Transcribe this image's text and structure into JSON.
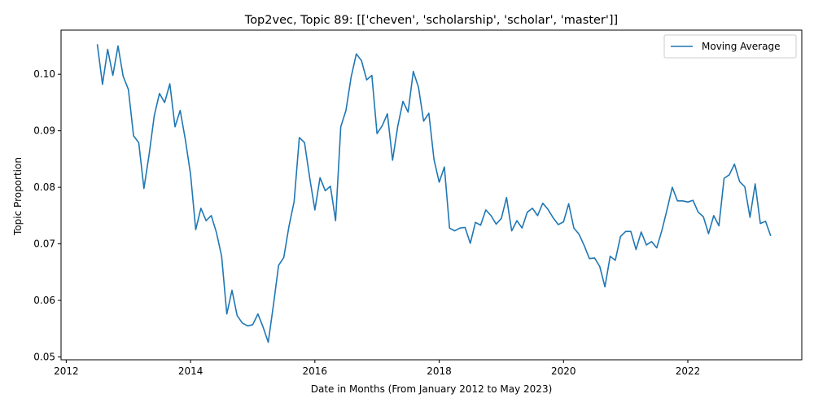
{
  "chart_data": {
    "type": "line",
    "title": "Top2vec, Topic 89: [['cheven', 'scholarship', 'scholar', 'master']]",
    "xlabel": "Date in Months (From January 2012 to May 2023)",
    "ylabel": "Topic Proportion",
    "xlim": [
      "2011-12-01",
      "2023-11-01"
    ],
    "ylim": [
      0.0495,
      0.1078
    ],
    "xticks": [
      "2012-01-01",
      "2014-01-01",
      "2016-01-01",
      "2018-01-01",
      "2020-01-01",
      "2022-01-01"
    ],
    "xtick_labels": [
      "2012",
      "2014",
      "2016",
      "2018",
      "2020",
      "2022"
    ],
    "yticks": [
      0.05,
      0.06,
      0.07,
      0.08,
      0.09,
      0.1
    ],
    "ytick_labels": [
      "0.05",
      "0.06",
      "0.07",
      "0.08",
      "0.09",
      "0.10"
    ],
    "grid": false,
    "legend": "top-right",
    "color": "#1f77b4",
    "series": [
      {
        "name": "Moving Average",
        "x": [
          "2012-07",
          "2012-08",
          "2012-09",
          "2012-10",
          "2012-11",
          "2012-12",
          "2013-01",
          "2013-02",
          "2013-03",
          "2013-04",
          "2013-05",
          "2013-06",
          "2013-07",
          "2013-08",
          "2013-09",
          "2013-10",
          "2013-11",
          "2013-12",
          "2014-01",
          "2014-02",
          "2014-03",
          "2014-04",
          "2014-05",
          "2014-06",
          "2014-07",
          "2014-08",
          "2014-09",
          "2014-10",
          "2014-11",
          "2014-12",
          "2015-01",
          "2015-02",
          "2015-03",
          "2015-04",
          "2015-05",
          "2015-06",
          "2015-07",
          "2015-08",
          "2015-09",
          "2015-10",
          "2015-11",
          "2015-12",
          "2016-01",
          "2016-02",
          "2016-03",
          "2016-04",
          "2016-05",
          "2016-06",
          "2016-07",
          "2016-08",
          "2016-09",
          "2016-10",
          "2016-11",
          "2016-12",
          "2017-01",
          "2017-02",
          "2017-03",
          "2017-04",
          "2017-05",
          "2017-06",
          "2017-07",
          "2017-08",
          "2017-09",
          "2017-10",
          "2017-11",
          "2017-12",
          "2018-01",
          "2018-02",
          "2018-03",
          "2018-04",
          "2018-05",
          "2018-06",
          "2018-07",
          "2018-08",
          "2018-09",
          "2018-10",
          "2018-11",
          "2018-12",
          "2019-01",
          "2019-02",
          "2019-03",
          "2019-04",
          "2019-05",
          "2019-06",
          "2019-07",
          "2019-08",
          "2019-09",
          "2019-10",
          "2019-11",
          "2019-12",
          "2020-01",
          "2020-02",
          "2020-03",
          "2020-04",
          "2020-05",
          "2020-06",
          "2020-07",
          "2020-08",
          "2020-09",
          "2020-10",
          "2020-11",
          "2020-12",
          "2021-01",
          "2021-02",
          "2021-03",
          "2021-04",
          "2021-05",
          "2021-06",
          "2021-07",
          "2021-08",
          "2021-09",
          "2021-10",
          "2021-11",
          "2021-12",
          "2022-01",
          "2022-02",
          "2022-03",
          "2022-04",
          "2022-05",
          "2022-06",
          "2022-07",
          "2022-08",
          "2022-09",
          "2022-10",
          "2022-11",
          "2022-12",
          "2023-01",
          "2023-02",
          "2023-03",
          "2023-04",
          "2023-05"
        ],
        "values": [
          0.1053,
          0.0982,
          0.1044,
          0.0998,
          0.105,
          0.0996,
          0.0973,
          0.0891,
          0.0879,
          0.0798,
          0.0858,
          0.0927,
          0.0966,
          0.095,
          0.0983,
          0.0907,
          0.0936,
          0.0884,
          0.0823,
          0.0725,
          0.0763,
          0.0741,
          0.075,
          0.072,
          0.0678,
          0.0576,
          0.0618,
          0.0573,
          0.056,
          0.0555,
          0.0557,
          0.0576,
          0.0553,
          0.0526,
          0.0592,
          0.0662,
          0.0676,
          0.0731,
          0.0775,
          0.0888,
          0.0879,
          0.0817,
          0.076,
          0.0817,
          0.0794,
          0.0802,
          0.0741,
          0.0907,
          0.0936,
          0.0995,
          0.1036,
          0.1024,
          0.099,
          0.0998,
          0.0895,
          0.0909,
          0.093,
          0.0848,
          0.0908,
          0.0952,
          0.0933,
          0.1005,
          0.0977,
          0.0917,
          0.0931,
          0.0849,
          0.0809,
          0.0836,
          0.0728,
          0.0723,
          0.0728,
          0.0729,
          0.0701,
          0.0738,
          0.0733,
          0.076,
          0.075,
          0.0735,
          0.0745,
          0.0782,
          0.0723,
          0.0741,
          0.0728,
          0.0756,
          0.0763,
          0.075,
          0.0772,
          0.0761,
          0.0746,
          0.0734,
          0.0739,
          0.0771,
          0.0728,
          0.0717,
          0.0697,
          0.0674,
          0.0675,
          0.066,
          0.0624,
          0.0678,
          0.0671,
          0.0713,
          0.0722,
          0.0722,
          0.069,
          0.0721,
          0.0698,
          0.0704,
          0.0693,
          0.0724,
          0.0761,
          0.08,
          0.0776,
          0.0776,
          0.0774,
          0.0777,
          0.0756,
          0.0748,
          0.0718,
          0.075,
          0.0732,
          0.0816,
          0.0822,
          0.0841,
          0.081,
          0.0801,
          0.0747,
          0.0806,
          0.0736,
          0.074,
          0.0714
        ]
      }
    ]
  }
}
